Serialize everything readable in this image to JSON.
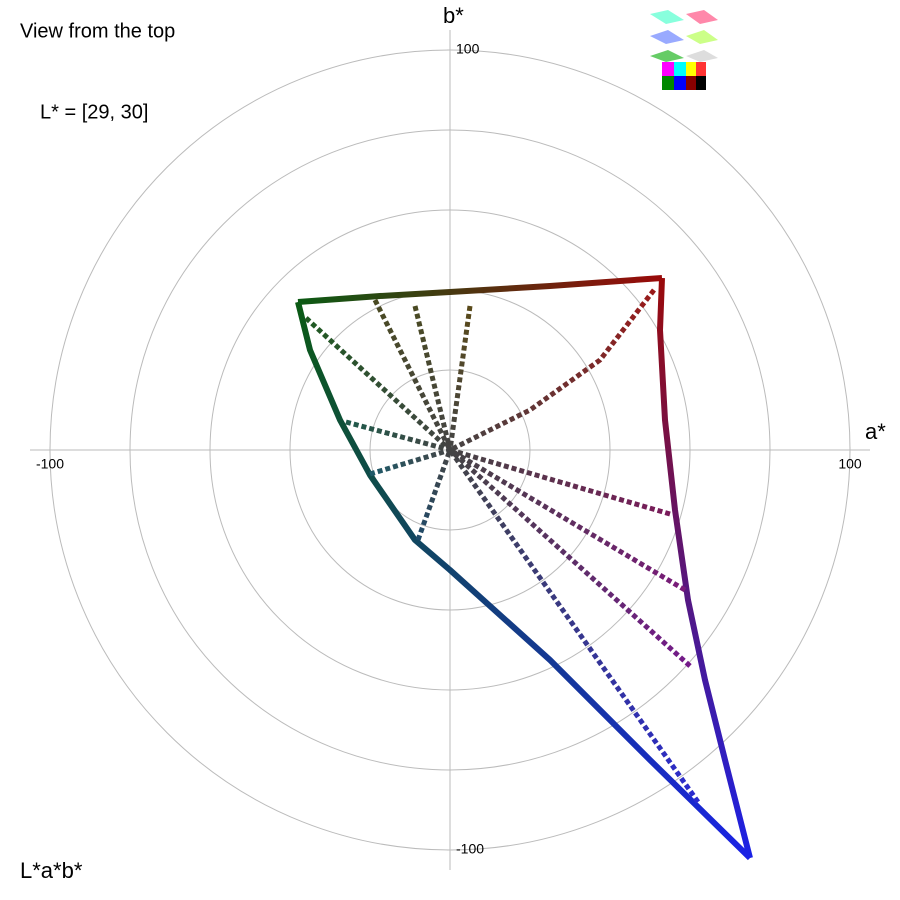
{
  "chart_data": {
    "type": "line",
    "title": "View from the top",
    "subtitle": "L* = [29, 30]",
    "corner_label": "L*a*b*",
    "x_label": "a*",
    "y_label": "b*",
    "xlim": [
      -105,
      105
    ],
    "ylim": [
      -105,
      105
    ],
    "xticks": [
      -100,
      100
    ],
    "yticks": [
      -100,
      100
    ],
    "rings": [
      20,
      40,
      60,
      80,
      100
    ],
    "grid": true,
    "series": [
      {
        "colors": [
          "#0b5a14",
          "#9a0a0a"
        ],
        "x": [
          -38,
          -17.5,
          0,
          25,
          53
        ],
        "values": [
          37,
          38.5,
          39.5,
          41,
          43
        ]
      },
      {
        "colors": [
          "#9a0a0a",
          "#1a22e6"
        ],
        "x": [
          53,
          52.5,
          53.75,
          56.25,
          59.5,
          63.75,
          68.75,
          75
        ],
        "values": [
          43,
          30,
          7.5,
          -15,
          -37.5,
          -57.5,
          -77.5,
          -102
        ]
      },
      {
        "colors": [
          "#1a22e6",
          "#0b5a14"
        ],
        "x": [
          75,
          50,
          25,
          0,
          -8.75,
          -20,
          -27.5,
          -35,
          -38
        ],
        "values": [
          -102,
          -77.5,
          -52.5,
          -30,
          -22.5,
          -6.25,
          7.5,
          25,
          37
        ]
      },
      {
        "colors": [
          "#1f5a22",
          "#444444"
        ],
        "x": [
          -36,
          0
        ],
        "values": [
          33,
          0
        ]
      },
      {
        "colors": [
          "#4a4a22",
          "#444444"
        ],
        "x": [
          -18.75,
          0
        ],
        "values": [
          37.5,
          0
        ]
      },
      {
        "colors": [
          "#4a4a22",
          "#444444"
        ],
        "x": [
          -8.75,
          0
        ],
        "values": [
          36,
          0
        ]
      },
      {
        "colors": [
          "#5a4a1a",
          "#444444"
        ],
        "x": [
          5,
          0
        ],
        "values": [
          36,
          0
        ]
      },
      {
        "colors": [
          "#9a1a1a",
          "#444444"
        ],
        "x": [
          51,
          37.5,
          20,
          0
        ],
        "values": [
          40,
          22.5,
          10,
          0
        ]
      },
      {
        "colors": [
          "#1e5a4a",
          "#444444"
        ],
        "x": [
          -26,
          0
        ],
        "values": [
          7,
          0
        ]
      },
      {
        "colors": [
          "#1e5a6a",
          "#444444"
        ],
        "x": [
          -20,
          0
        ],
        "values": [
          -6,
          0
        ]
      },
      {
        "colors": [
          "#1e4a6a",
          "#444444"
        ],
        "x": [
          -8,
          0
        ],
        "values": [
          -22.5,
          0
        ]
      },
      {
        "colors": [
          "#7a1a5a",
          "#444444"
        ],
        "x": [
          55,
          0
        ],
        "values": [
          -16,
          0
        ]
      },
      {
        "colors": [
          "#7a1a7a",
          "#444444"
        ],
        "x": [
          58.75,
          0
        ],
        "values": [
          -35,
          0
        ]
      },
      {
        "colors": [
          "#751a8a",
          "#444444"
        ],
        "x": [
          60,
          0
        ],
        "values": [
          -54,
          0
        ]
      },
      {
        "colors": [
          "#2a2ad0",
          "#444444"
        ],
        "x": [
          62,
          0
        ],
        "values": [
          -88,
          0
        ]
      }
    ]
  }
}
